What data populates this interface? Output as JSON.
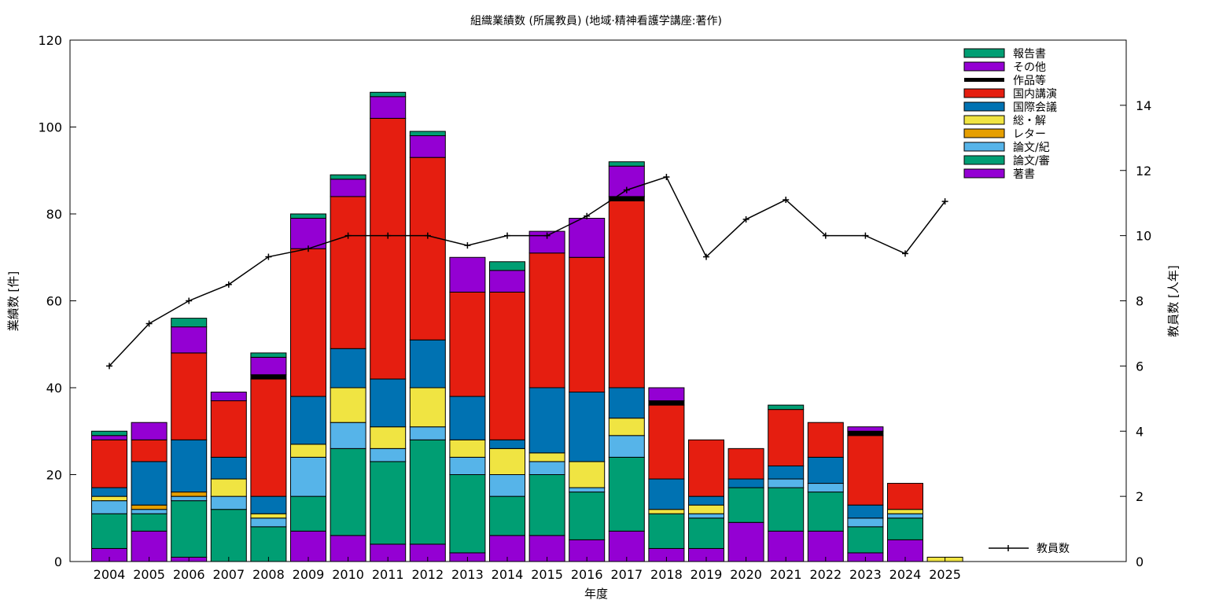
{
  "chart_data": {
    "type": "bar",
    "stacked": true,
    "title": "組織業績数 (所属教員) (地域·精神看護学講座:著作)",
    "xlabel": "年度",
    "ylabel": "業績数 [件]",
    "y2label": "教員数 [人年]",
    "ylim": [
      0,
      120
    ],
    "y2lim": [
      0,
      16
    ],
    "yticks": [
      0,
      20,
      40,
      60,
      80,
      100,
      120
    ],
    "y2ticks": [
      0,
      2,
      4,
      6,
      8,
      10,
      12,
      14
    ],
    "grid": false,
    "legend_position": "top-right",
    "categories": [
      "2004",
      "2005",
      "2006",
      "2007",
      "2008",
      "2009",
      "2010",
      "2011",
      "2012",
      "2013",
      "2014",
      "2015",
      "2016",
      "2017",
      "2018",
      "2019",
      "2020",
      "2021",
      "2022",
      "2023",
      "2024",
      "2025"
    ],
    "series": [
      {
        "name": "著書",
        "color": "#9400d3",
        "values": [
          3,
          7,
          1,
          0,
          0,
          7,
          6,
          4,
          4,
          2,
          6,
          6,
          5,
          7,
          3,
          3,
          9,
          7,
          7,
          2,
          5,
          0
        ]
      },
      {
        "name": "論文/審",
        "color": "#009e73",
        "values": [
          8,
          4,
          13,
          12,
          8,
          8,
          20,
          19,
          24,
          18,
          9,
          14,
          11,
          17,
          8,
          7,
          8,
          10,
          9,
          6,
          5,
          0
        ]
      },
      {
        "name": "論文/紀",
        "color": "#56b4e9",
        "values": [
          3,
          1,
          1,
          3,
          2,
          9,
          6,
          3,
          3,
          4,
          5,
          3,
          1,
          5,
          0,
          1,
          0,
          2,
          2,
          2,
          1,
          0
        ]
      },
      {
        "name": "レター",
        "color": "#e69f00",
        "values": [
          0,
          1,
          1,
          0,
          0,
          0,
          0,
          0,
          0,
          0,
          0,
          0,
          0,
          0,
          0,
          0,
          0,
          0,
          0,
          0,
          0,
          0
        ]
      },
      {
        "name": "総・解",
        "color": "#f0e442",
        "values": [
          1,
          0,
          0,
          4,
          1,
          3,
          8,
          5,
          9,
          4,
          6,
          2,
          6,
          4,
          1,
          2,
          0,
          0,
          0,
          0,
          1,
          1
        ]
      },
      {
        "name": "国際会議",
        "color": "#0072b2",
        "values": [
          2,
          10,
          12,
          5,
          4,
          11,
          9,
          11,
          11,
          10,
          2,
          15,
          16,
          7,
          7,
          2,
          2,
          3,
          6,
          3,
          0,
          0
        ]
      },
      {
        "name": "国内講演",
        "color": "#e51e10",
        "values": [
          11,
          5,
          20,
          13,
          27,
          34,
          35,
          60,
          42,
          24,
          34,
          31,
          31,
          43,
          17,
          13,
          7,
          13,
          8,
          16,
          6,
          0
        ]
      },
      {
        "name": "作品等",
        "color": "#000000",
        "values": [
          0,
          0,
          0,
          0,
          1,
          0,
          0,
          0,
          0,
          0,
          0,
          0,
          0,
          1,
          1,
          0,
          0,
          0,
          0,
          1,
          0,
          0
        ]
      },
      {
        "name": "その他",
        "color": "#9400d3",
        "values": [
          1,
          4,
          6,
          2,
          4,
          7,
          4,
          5,
          5,
          8,
          5,
          5,
          9,
          7,
          3,
          0,
          0,
          0,
          0,
          1,
          0,
          0
        ]
      },
      {
        "name": "報告書",
        "color": "#009e73",
        "values": [
          1,
          0,
          2,
          0,
          1,
          1,
          1,
          1,
          1,
          0,
          2,
          0,
          0,
          1,
          0,
          0,
          0,
          1,
          0,
          0,
          0,
          0
        ]
      }
    ],
    "legend_order": [
      "報告書",
      "その他",
      "作品等",
      "国内講演",
      "国際会議",
      "総・解",
      "レター",
      "論文/紀",
      "論文/審",
      "著書"
    ],
    "line_series": {
      "name": "教員数",
      "color": "#000000",
      "axis": "y2",
      "values": [
        6.0,
        7.3,
        8.0,
        8.5,
        9.35,
        9.6,
        10.0,
        10.0,
        10.0,
        9.7,
        10.0,
        10.0,
        10.6,
        11.4,
        11.8,
        9.35,
        10.5,
        11.1,
        10.0,
        10.0,
        9.45,
        11.05
      ]
    }
  }
}
